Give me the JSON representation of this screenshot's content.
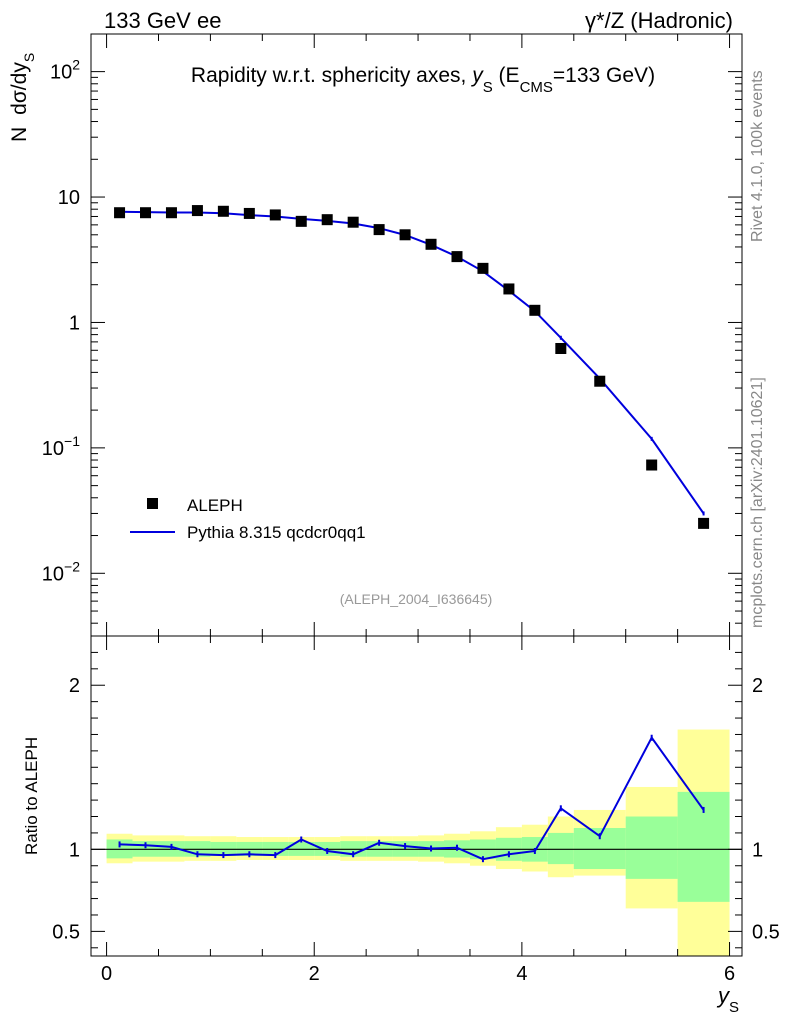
{
  "header": {
    "left": "133 GeV ee",
    "right_prefix": "γ*/Z",
    "right_suffix": "(Hadronic)"
  },
  "side": {
    "rivet": "Rivet 4.1.0,  100k events",
    "mcplots": "mcplots.cern.ch [arXiv:2401.10621]"
  },
  "chart_data": {
    "type": "line",
    "title": {
      "prefix": "Rapidity w.r.t. sphericity axes, ",
      "var": "y",
      "var_sub": "S",
      "mid": " (E",
      "mid_sub": "CMS",
      "suffix": "=133 GeV)"
    },
    "ylabel": {
      "n": "N",
      "expr": "dσ/dy",
      "sub": "S"
    },
    "xlabel": {
      "var": "y",
      "sub": "S"
    },
    "analysis_id": "(ALEPH_2004_I636645)",
    "x_range": [
      -0.15,
      6.12
    ],
    "main_y_range_log10": [
      -2.5,
      2.3
    ],
    "main_y_ticks": [
      {
        "value": 100,
        "mant": "10",
        "exp": "2"
      },
      {
        "value": 10,
        "mant": "10",
        "exp": ""
      },
      {
        "value": 1,
        "mant": "1",
        "exp": ""
      },
      {
        "value": 0.1,
        "mant": "10",
        "exp": "−1"
      },
      {
        "value": 0.01,
        "mant": "10",
        "exp": "−2"
      }
    ],
    "x_ticks": [
      "0",
      "2",
      "4",
      "6"
    ],
    "ratio_ylabel": "Ratio to ALEPH",
    "ratio_y_range": [
      0.35,
      2.3
    ],
    "ratio_ticks": [
      "0.5",
      "1",
      "2"
    ],
    "bin_edges": [
      0,
      0.25,
      0.5,
      0.75,
      1.0,
      1.25,
      1.5,
      1.75,
      2.0,
      2.25,
      2.5,
      2.75,
      3.0,
      3.25,
      3.5,
      3.75,
      4.0,
      4.25,
      4.5,
      5.0,
      5.5,
      6.0
    ],
    "series": [
      {
        "name": "ALEPH",
        "marker": "square",
        "color": "#000000",
        "x": [
          0.125,
          0.375,
          0.625,
          0.875,
          1.125,
          1.375,
          1.625,
          1.875,
          2.125,
          2.375,
          2.625,
          2.875,
          3.125,
          3.375,
          3.625,
          3.875,
          4.125,
          4.375,
          4.75,
          5.25,
          5.75
        ],
        "values": [
          7.5,
          7.5,
          7.5,
          7.8,
          7.7,
          7.4,
          7.2,
          6.4,
          6.6,
          6.3,
          5.5,
          5.0,
          4.2,
          3.35,
          2.7,
          1.85,
          1.25,
          0.62,
          0.34,
          0.073,
          0.025
        ]
      },
      {
        "name": "Pythia 8.315 qcdcr0qq1",
        "marker": "line",
        "color": "#0000dd",
        "x": [
          0.125,
          0.375,
          0.625,
          0.875,
          1.125,
          1.375,
          1.625,
          1.875,
          2.125,
          2.375,
          2.625,
          2.875,
          3.125,
          3.375,
          3.625,
          3.875,
          4.125,
          4.375,
          4.75,
          5.25,
          5.75
        ],
        "values": [
          7.62,
          7.58,
          7.53,
          7.53,
          7.42,
          7.18,
          7.0,
          6.7,
          6.45,
          6.15,
          5.65,
          4.98,
          4.16,
          3.35,
          2.56,
          1.79,
          1.23,
          0.755,
          0.357,
          0.118,
          0.03
        ]
      }
    ],
    "ratio": {
      "reference": 1,
      "values": [
        1.03,
        1.025,
        1.015,
        0.97,
        0.965,
        0.97,
        0.965,
        1.06,
        0.99,
        0.97,
        1.04,
        1.02,
        1.005,
        1.01,
        0.94,
        0.97,
        0.99,
        1.25,
        1.08,
        1.68,
        1.24
      ],
      "inner_band": [
        [
          0.945,
          1.06
        ],
        [
          0.955,
          1.05
        ],
        [
          0.955,
          1.05
        ],
        [
          0.955,
          1.05
        ],
        [
          0.96,
          1.045
        ],
        [
          0.96,
          1.045
        ],
        [
          0.96,
          1.045
        ],
        [
          0.96,
          1.045
        ],
        [
          0.96,
          1.045
        ],
        [
          0.955,
          1.05
        ],
        [
          0.955,
          1.05
        ],
        [
          0.955,
          1.05
        ],
        [
          0.955,
          1.05
        ],
        [
          0.95,
          1.055
        ],
        [
          0.94,
          1.06
        ],
        [
          0.93,
          1.07
        ],
        [
          0.925,
          1.075
        ],
        [
          0.91,
          1.1
        ],
        [
          0.88,
          1.13
        ],
        [
          0.82,
          1.2
        ],
        [
          0.68,
          1.35
        ]
      ],
      "outer_band": [
        [
          0.915,
          1.095
        ],
        [
          0.925,
          1.085
        ],
        [
          0.925,
          1.085
        ],
        [
          0.93,
          1.08
        ],
        [
          0.93,
          1.08
        ],
        [
          0.935,
          1.075
        ],
        [
          0.935,
          1.075
        ],
        [
          0.935,
          1.075
        ],
        [
          0.935,
          1.075
        ],
        [
          0.93,
          1.08
        ],
        [
          0.93,
          1.08
        ],
        [
          0.93,
          1.08
        ],
        [
          0.925,
          1.085
        ],
        [
          0.915,
          1.095
        ],
        [
          0.9,
          1.11
        ],
        [
          0.88,
          1.135
        ],
        [
          0.865,
          1.15
        ],
        [
          0.83,
          1.2
        ],
        [
          0.84,
          1.24
        ],
        [
          0.64,
          1.38
        ],
        [
          0.35,
          1.73
        ]
      ]
    },
    "legend": "center-left"
  },
  "colors": {
    "band_outer": "#ffff99",
    "band_inner": "#99ff99",
    "mc_line": "#0000dd",
    "data_marker": "#000000"
  }
}
